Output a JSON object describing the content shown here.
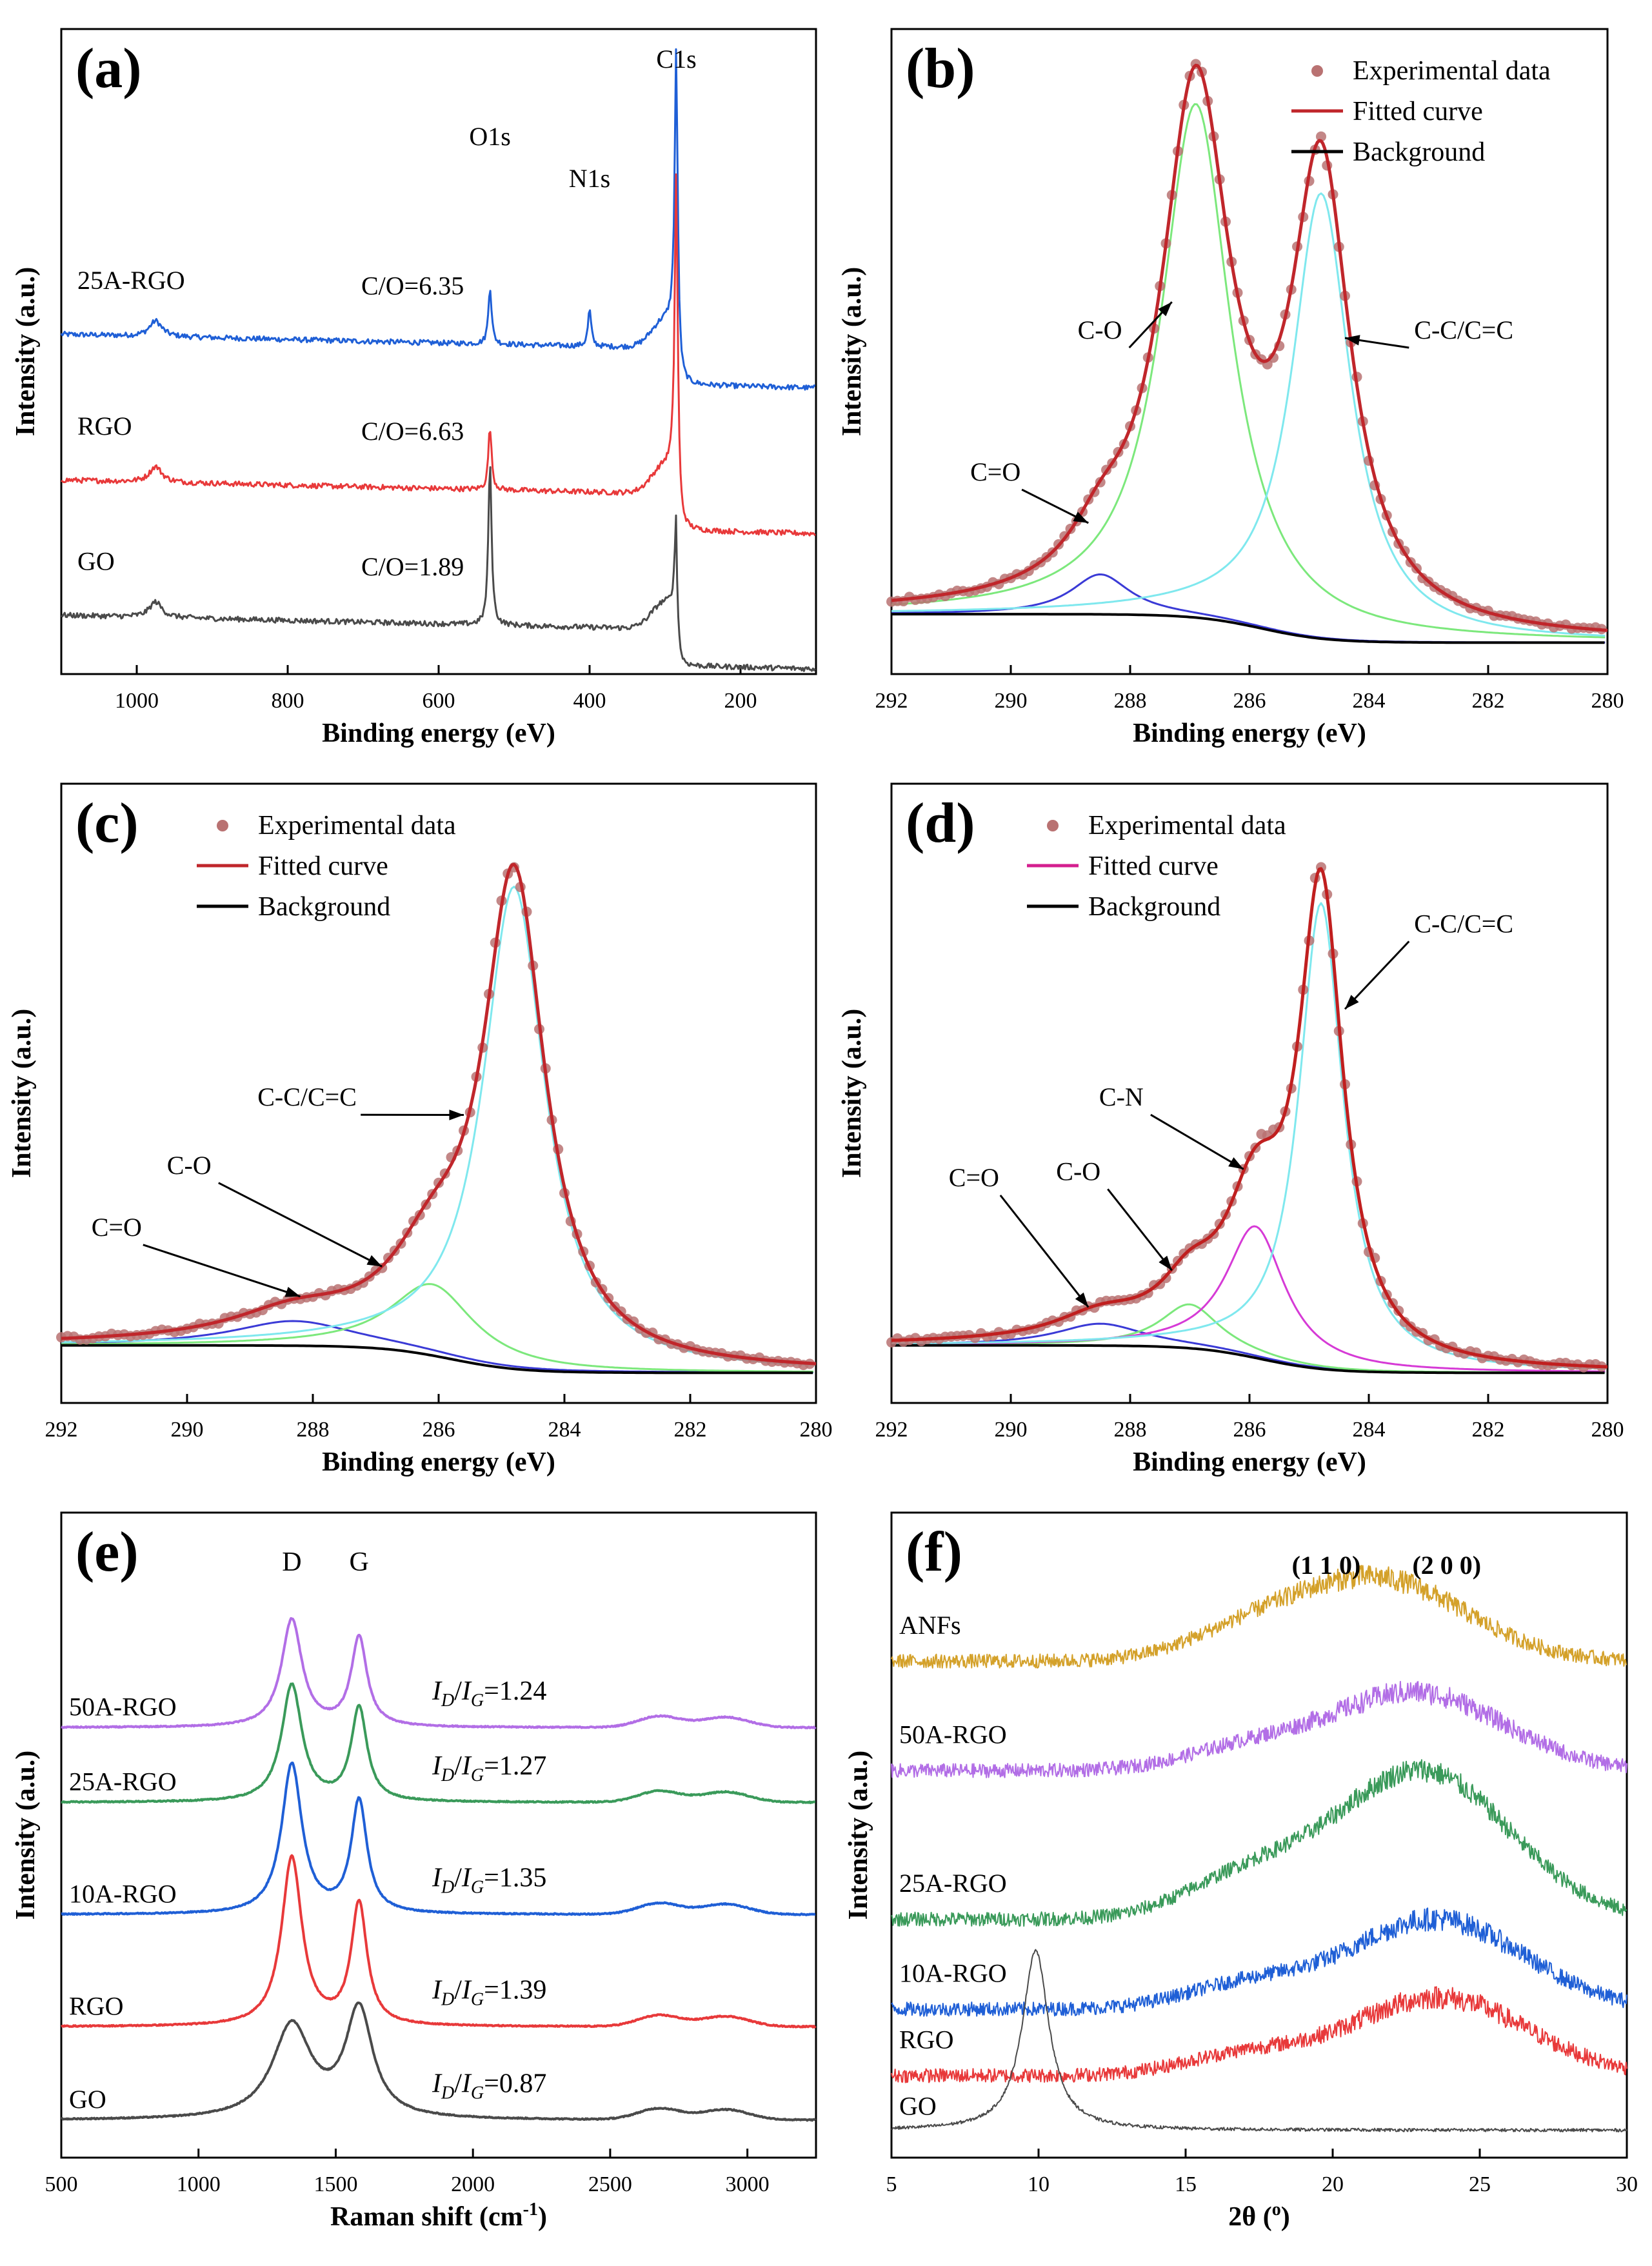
{
  "figure": {
    "description_free": true
  },
  "chart_data": [
    {
      "id": "a",
      "type": "line",
      "panel_label": "(a)",
      "xlabel": "Binding energy (eV)",
      "ylabel": "Intensity (a.u.)",
      "xlim": [
        1100,
        100
      ],
      "xticks": [
        1000,
        800,
        600,
        400,
        200
      ],
      "peak_labels": [
        {
          "text": "C1s",
          "x": 285
        },
        {
          "text": "O1s",
          "x": 532
        },
        {
          "text": "N1s",
          "x": 400
        }
      ],
      "series": [
        {
          "name": "25A-RGO",
          "color": "#1f5fd6",
          "ratio_label": "C/O=6.35",
          "baseline": 3.1,
          "peaks": [
            {
              "x": 975,
              "h": 0.15
            },
            {
              "x": 532,
              "h": 0.55
            },
            {
              "x": 400,
              "h": 0.35
            },
            {
              "x": 285,
              "h": 2.8
            }
          ]
        },
        {
          "name": "RGO",
          "color": "#e8393a",
          "ratio_label": "C/O=6.63",
          "baseline": 1.7,
          "peaks": [
            {
              "x": 975,
              "h": 0.15
            },
            {
              "x": 532,
              "h": 0.6
            },
            {
              "x": 285,
              "h": 3.0
            }
          ]
        },
        {
          "name": "GO",
          "color": "#4a4a4a",
          "ratio_label": "C/O=1.89",
          "baseline": 0.4,
          "peaks": [
            {
              "x": 975,
              "h": 0.15
            },
            {
              "x": 532,
              "h": 1.55
            },
            {
              "x": 285,
              "h": 0.95
            }
          ]
        }
      ]
    },
    {
      "id": "b",
      "type": "scatter+line",
      "panel_label": "(b)",
      "xlabel": "Binding energy (eV)",
      "ylabel": "Intensity (a.u.)",
      "xlim": [
        292,
        280
      ],
      "xticks": [
        292,
        290,
        288,
        286,
        284,
        282,
        280
      ],
      "ylim": [
        0,
        1.05
      ],
      "legend": [
        "Experimental data",
        "Fitted curve",
        "Background"
      ],
      "components": [
        {
          "name": "C=O",
          "center": 288.5,
          "height": 0.07,
          "width": 0.6,
          "color": "#3a3ad6"
        },
        {
          "name": "C-O",
          "center": 286.9,
          "height": 0.9,
          "width": 0.7,
          "color": "#7ce87c"
        },
        {
          "name": "C-C/C=C",
          "center": 284.8,
          "height": 0.78,
          "width": 0.6,
          "color": "#7fe8ee"
        }
      ],
      "annotations": [
        {
          "text": "C-O",
          "x": 287.3
        },
        {
          "text": "C-C/C=C",
          "x": 284.3
        },
        {
          "text": "C=O",
          "x": 288.7
        }
      ]
    },
    {
      "id": "c",
      "type": "scatter+line",
      "panel_label": "(c)",
      "xlabel": "Binding energy (eV)",
      "ylabel": "Intensity (a.u.)",
      "xlim": [
        292,
        280
      ],
      "xticks": [
        292,
        290,
        288,
        286,
        284,
        282,
        280
      ],
      "ylim": [
        0,
        1.05
      ],
      "legend": [
        "Experimental data",
        "Fitted curve",
        "Background"
      ],
      "components": [
        {
          "name": "C=O",
          "center": 288.3,
          "height": 0.045,
          "width": 1.2,
          "color": "#3a3ad6"
        },
        {
          "name": "C-O",
          "center": 286.1,
          "height": 0.13,
          "width": 0.8,
          "color": "#7ce87c"
        },
        {
          "name": "C-C/C=C",
          "center": 284.8,
          "height": 0.88,
          "width": 0.6,
          "color": "#7fe8ee"
        }
      ],
      "annotations": [
        {
          "text": "C-C/C=C",
          "x": 285.6
        },
        {
          "text": "C-O",
          "x": 286.9
        },
        {
          "text": "C=O",
          "x": 288.3
        }
      ]
    },
    {
      "id": "d",
      "type": "scatter+line",
      "panel_label": "(d)",
      "xlabel": "Binding energy (eV)",
      "ylabel": "Intensity (a.u.)",
      "xlim": [
        292,
        280
      ],
      "xticks": [
        292,
        290,
        288,
        286,
        284,
        282,
        280
      ],
      "ylim": [
        0,
        1.05
      ],
      "legend": [
        "Experimental data",
        "Fitted curve",
        "Background"
      ],
      "components": [
        {
          "name": "C=O",
          "center": 288.5,
          "height": 0.04,
          "width": 0.9,
          "color": "#3a3ad6"
        },
        {
          "name": "C-O",
          "center": 287.0,
          "height": 0.08,
          "width": 0.6,
          "color": "#7ce87c"
        },
        {
          "name": "C-N",
          "center": 285.9,
          "height": 0.24,
          "width": 0.6,
          "color": "#d63ad6"
        },
        {
          "name": "C-C/C=C",
          "center": 284.8,
          "height": 0.85,
          "width": 0.45,
          "color": "#7fe8ee"
        }
      ],
      "annotations": [
        {
          "text": "C-C/C=C",
          "x": 284.4
        },
        {
          "text": "C-N",
          "x": 286.1
        },
        {
          "text": "C-O",
          "x": 287.3
        },
        {
          "text": "C=O",
          "x": 288.8
        }
      ]
    },
    {
      "id": "e",
      "type": "line",
      "panel_label": "(e)",
      "xlabel": "Raman shift (cm-1)",
      "xlabel_main": "Raman shift (cm",
      "xlabel_sup": "-1",
      "xlabel_end": ")",
      "ylabel": "Intensity (a.u.)",
      "xlim": [
        500,
        3250
      ],
      "xticks": [
        500,
        1000,
        1500,
        2000,
        2500,
        3000
      ],
      "band_labels": [
        {
          "text": "D",
          "x": 1340
        },
        {
          "text": "G",
          "x": 1585
        }
      ],
      "series": [
        {
          "name": "50A-RGO",
          "color": "#b26ee6",
          "ratio": "1.24",
          "baseline": 4.3,
          "D": 1.15,
          "G": 0.95
        },
        {
          "name": "25A-RGO",
          "color": "#3a9a5a",
          "ratio": "1.27",
          "baseline": 3.5,
          "D": 1.25,
          "G": 1.0
        },
        {
          "name": "10A-RGO",
          "color": "#1f5fd6",
          "ratio": "1.35",
          "baseline": 2.3,
          "D": 1.6,
          "G": 1.2
        },
        {
          "name": "RGO",
          "color": "#e8393a",
          "ratio": "1.39",
          "baseline": 1.1,
          "D": 1.8,
          "G": 1.3
        },
        {
          "name": "GO",
          "color": "#4a4a4a",
          "ratio": "0.87",
          "baseline": 0.1,
          "D": 1.0,
          "G": 1.15
        }
      ]
    },
    {
      "id": "f",
      "type": "line",
      "panel_label": "(f)",
      "xlabel": "2θ (°)",
      "xlabel_main": "2θ (",
      "xlabel_sup": "o",
      "xlabel_end": ")",
      "ylabel": "Intensity (a.u.)",
      "xlim": [
        5,
        30
      ],
      "xticks": [
        5,
        10,
        15,
        20,
        25,
        30
      ],
      "plane_labels": [
        {
          "text": "(1 1 0)",
          "x": 20.0
        },
        {
          "text": "(2 0 0)",
          "x": 23.0
        }
      ],
      "series": [
        {
          "name": "ANFs",
          "color": "#d4a12a",
          "baseline": 6.0,
          "hump": 1.05,
          "center": 21.5
        },
        {
          "name": "50A-RGO",
          "color": "#b26ee6",
          "baseline": 4.6,
          "hump": 1.0,
          "center": 22.8
        },
        {
          "name": "25A-RGO",
          "color": "#3a9a5a",
          "baseline": 2.7,
          "hump": 1.9,
          "center": 23.0
        },
        {
          "name": "10A-RGO",
          "color": "#1f5fd6",
          "baseline": 1.55,
          "hump": 1.15,
          "center": 23.5
        },
        {
          "name": "RGO",
          "color": "#e8393a",
          "baseline": 0.7,
          "hump": 1.0,
          "center": 23.6
        },
        {
          "name": "GO",
          "color": "#4a4a4a",
          "baseline": 0.0,
          "hump": 0.0,
          "center": 23.0,
          "sharp_peak": {
            "x": 9.9,
            "h": 2.3
          }
        }
      ]
    }
  ]
}
